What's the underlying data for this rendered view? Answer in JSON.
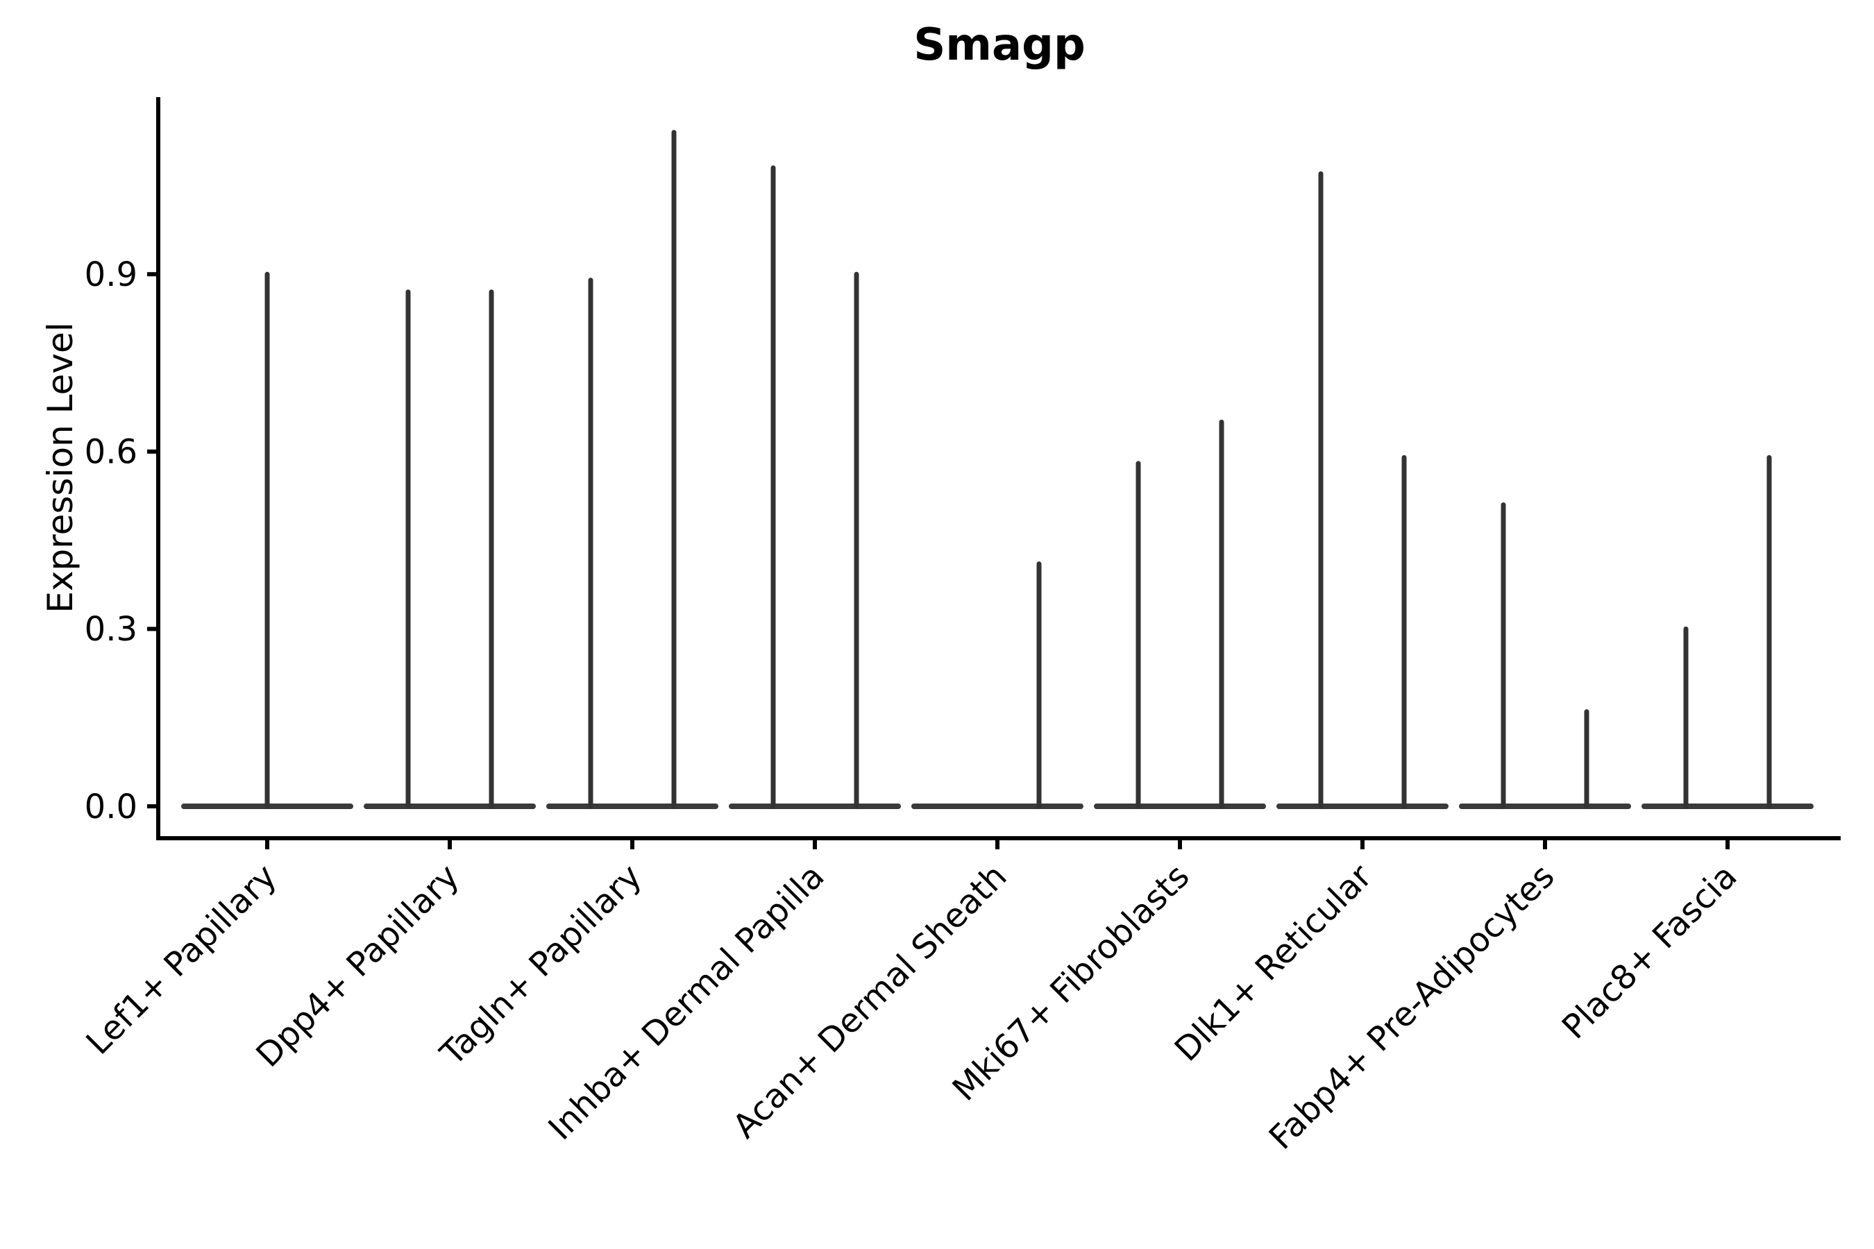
{
  "chart_data": {
    "type": "violin",
    "title": "Smagp",
    "ylabel": "Expression Level",
    "xlabel": "",
    "ylim": [
      0,
      1.2
    ],
    "grid": false,
    "legend": "none",
    "y_axis": {
      "tick_values": [
        0.0,
        0.3,
        0.6,
        0.9
      ],
      "tick_labels": [
        "0.0",
        "0.3",
        "0.6",
        "0.9"
      ]
    },
    "categories": [
      "Lef1+ Papillary",
      "Dpp4+ Papillary",
      "Tagln+ Papillary",
      "Inhba+ Dermal Papilla",
      "Acan+ Dermal Sheath",
      "Mki67+ Fibroblasts",
      "Dlk1+ Reticular",
      "Fabp4+ Pre-Adipocytes",
      "Plac8+ Fascia"
    ],
    "groups": [
      {
        "category": "Lef1+ Papillary",
        "violins": [
          {
            "side": "center",
            "max": 0.9
          }
        ]
      },
      {
        "category": "Dpp4+ Papillary",
        "violins": [
          {
            "side": "left",
            "max": 0.87
          },
          {
            "side": "right",
            "max": 0.87
          }
        ]
      },
      {
        "category": "Tagln+ Papillary",
        "violins": [
          {
            "side": "left",
            "max": 0.89
          },
          {
            "side": "right",
            "max": 1.14
          }
        ]
      },
      {
        "category": "Inhba+ Dermal Papilla",
        "violins": [
          {
            "side": "left",
            "max": 1.08
          },
          {
            "side": "right",
            "max": 0.9
          }
        ]
      },
      {
        "category": "Acan+ Dermal Sheath",
        "violins": [
          {
            "side": "left",
            "max": 0.0
          },
          {
            "side": "right",
            "max": 0.41
          }
        ]
      },
      {
        "category": "Mki67+ Fibroblasts",
        "violins": [
          {
            "side": "left",
            "max": 0.58
          },
          {
            "side": "right",
            "max": 0.65
          }
        ]
      },
      {
        "category": "Dlk1+ Reticular",
        "violins": [
          {
            "side": "left",
            "max": 1.07
          },
          {
            "side": "right",
            "max": 0.59
          }
        ]
      },
      {
        "category": "Fabp4+ Pre-Adipocytes",
        "violins": [
          {
            "side": "left",
            "max": 0.51
          },
          {
            "side": "right",
            "max": 0.16
          }
        ]
      },
      {
        "category": "Plac8+ Fascia",
        "violins": [
          {
            "side": "left",
            "max": 0.3
          },
          {
            "side": "right",
            "max": 0.59
          }
        ]
      }
    ],
    "colors": {
      "violin": "#333333",
      "violin_base": "#3a3a3a",
      "axis": "#000000",
      "text": "#000000",
      "background": "#ffffff"
    }
  }
}
